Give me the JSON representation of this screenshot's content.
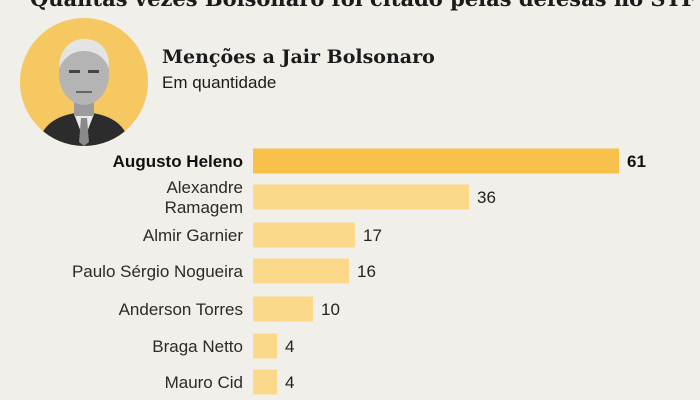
{
  "header": {
    "headline": "Quantas vezes Bolsonaro foi citado pelas defesas no STF",
    "portrait_icon": "portrait-photo-icon"
  },
  "chart_data": {
    "type": "bar",
    "orientation": "horizontal",
    "title": "Menções a Jair Bolsonaro",
    "subtitle": "Em quantidade",
    "categories": [
      [
        "Augusto Heleno"
      ],
      [
        "Alexandre",
        "Ramagem"
      ],
      [
        "Almir Garnier"
      ],
      [
        "Paulo Sérgio Nogueira"
      ],
      [
        "Anderson Torres"
      ],
      [
        "Braga Netto"
      ],
      [
        "Mauro Cid"
      ]
    ],
    "values": [
      61,
      36,
      17,
      16,
      10,
      4,
      4
    ],
    "highlight_index": 0,
    "xlim": [
      0,
      61
    ],
    "grid": false,
    "colors": {
      "highlight": "#f7c14c",
      "bar": "#fbd88a",
      "background": "#f1efe9"
    }
  }
}
